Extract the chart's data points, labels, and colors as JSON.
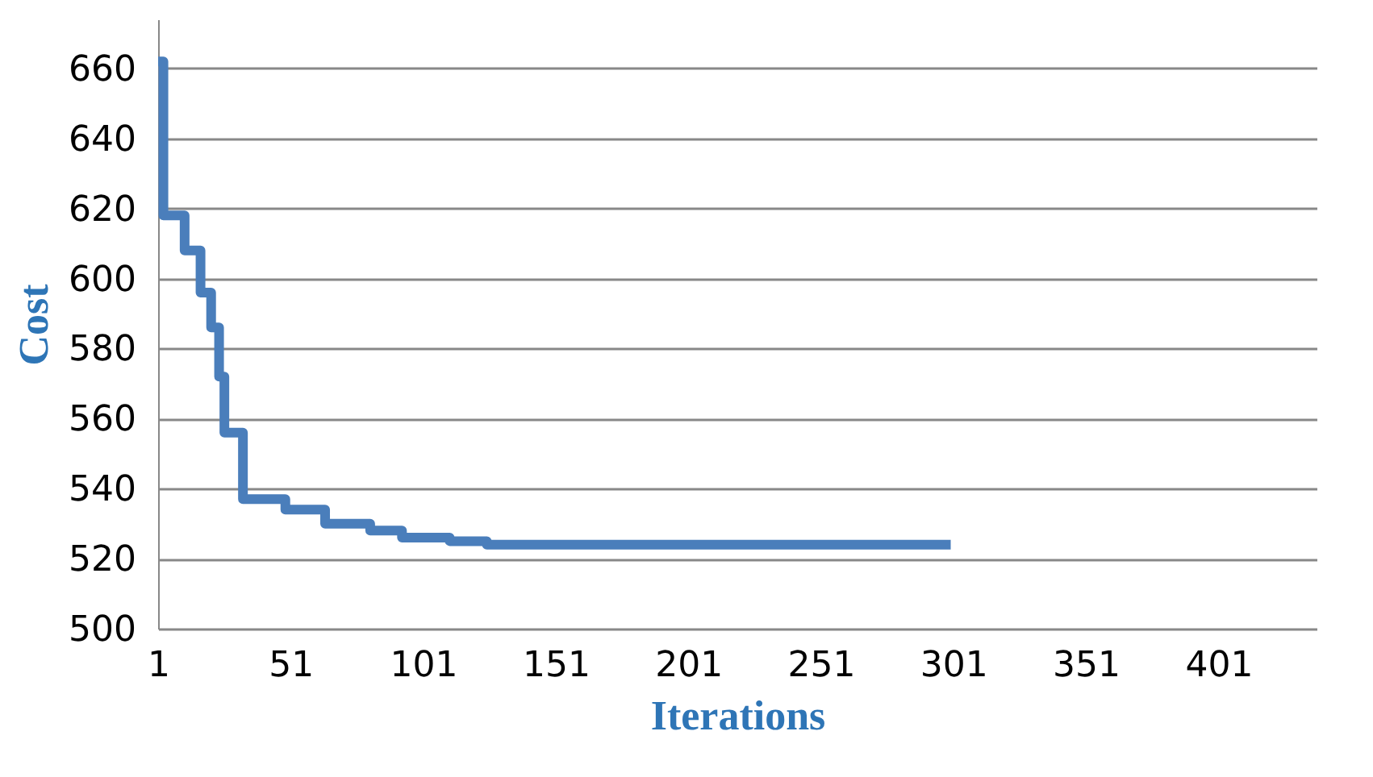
{
  "chart_data": {
    "type": "step",
    "xlabel": "Iterations",
    "ylabel": "Cost",
    "x": [
      1,
      3,
      11,
      17,
      21,
      24,
      26,
      33,
      49,
      64,
      81,
      93,
      111,
      125,
      300
    ],
    "series": [
      {
        "color": "#4a7ebb",
        "values": [
          662,
          618,
          608,
          596,
          586,
          572,
          556,
          537,
          534,
          530,
          528,
          526,
          525,
          524,
          524
        ]
      }
    ],
    "xlim": [
      1,
      438
    ],
    "xticks": [
      1,
      51,
      101,
      151,
      201,
      251,
      301,
      351,
      401
    ],
    "ylim": [
      500,
      674
    ],
    "yticks": [
      500,
      520,
      540,
      560,
      580,
      600,
      620,
      640,
      660
    ],
    "grid": "y",
    "marker": "none",
    "line_style": "solid"
  }
}
